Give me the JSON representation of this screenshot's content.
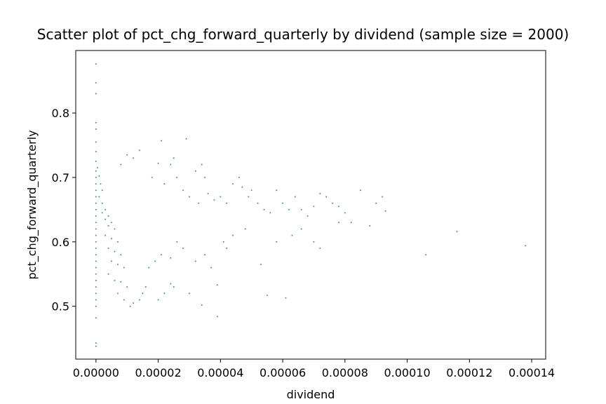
{
  "chart_data": {
    "type": "scatter",
    "title": "Scatter plot of pct_chg_forward_quarterly by dividend (sample size = 2000)",
    "xlabel": "dividend",
    "ylabel": "pct_chg_forward_quarterly",
    "xlim": [
      -6.5e-06,
      0.0001445
    ],
    "ylim": [
      0.418,
      0.897
    ],
    "xticks": [
      0.0,
      2e-05,
      4e-05,
      6e-05,
      8e-05,
      0.0001,
      0.00012,
      0.00014
    ],
    "xtick_labels": [
      "0.00000",
      "0.00002",
      "0.00004",
      "0.00006",
      "0.00008",
      "0.00010",
      "0.00012",
      "0.00014"
    ],
    "yticks": [
      0.5,
      0.6,
      0.7,
      0.8
    ],
    "ytick_labels": [
      "0.5",
      "0.6",
      "0.7",
      "0.8"
    ],
    "grid": false,
    "marker_color": "#1f77b4",
    "series": [
      {
        "points": [
          [
            0.0,
            0.876
          ],
          [
            0.0,
            0.847
          ],
          [
            0.0,
            0.83
          ],
          [
            0.0,
            0.785
          ],
          [
            0.0,
            0.775
          ],
          [
            0.0,
            0.755
          ],
          [
            0.0,
            0.74
          ],
          [
            0.0,
            0.725
          ],
          [
            0.0,
            0.71
          ],
          [
            0.0,
            0.7
          ],
          [
            0.0,
            0.69
          ],
          [
            0.0,
            0.68
          ],
          [
            0.0,
            0.67
          ],
          [
            0.0,
            0.66
          ],
          [
            0.0,
            0.65
          ],
          [
            0.0,
            0.64
          ],
          [
            0.0,
            0.63
          ],
          [
            0.0,
            0.62
          ],
          [
            0.0,
            0.61
          ],
          [
            0.0,
            0.6
          ],
          [
            0.0,
            0.59
          ],
          [
            0.0,
            0.58
          ],
          [
            0.0,
            0.57
          ],
          [
            0.0,
            0.56
          ],
          [
            0.0,
            0.55
          ],
          [
            0.0,
            0.54
          ],
          [
            0.0,
            0.53
          ],
          [
            0.0,
            0.52
          ],
          [
            0.0,
            0.51
          ],
          [
            0.0,
            0.5
          ],
          [
            0.0,
            0.482
          ],
          [
            0.0,
            0.443
          ],
          [
            0.0,
            0.438
          ],
          [
            5e-07,
            0.715
          ],
          [
            1e-06,
            0.702
          ],
          [
            1.5e-06,
            0.69
          ],
          [
            2e-06,
            0.68
          ],
          [
            1e-06,
            0.67
          ],
          [
            2e-06,
            0.66
          ],
          [
            3e-06,
            0.65
          ],
          [
            2e-06,
            0.645
          ],
          [
            4e-06,
            0.64
          ],
          [
            3e-06,
            0.635
          ],
          [
            5e-06,
            0.63
          ],
          [
            4e-06,
            0.625
          ],
          [
            6e-06,
            0.62
          ],
          [
            3e-06,
            0.61
          ],
          [
            5e-06,
            0.605
          ],
          [
            7e-06,
            0.6
          ],
          [
            4e-06,
            0.59
          ],
          [
            6e-06,
            0.585
          ],
          [
            8e-06,
            0.58
          ],
          [
            5e-06,
            0.57
          ],
          [
            7e-06,
            0.565
          ],
          [
            9e-06,
            0.56
          ],
          [
            4e-06,
            0.55
          ],
          [
            6e-06,
            0.54
          ],
          [
            8e-06,
            0.538
          ],
          [
            1e-05,
            0.53
          ],
          [
            7e-06,
            0.52
          ],
          [
            9e-06,
            0.51
          ],
          [
            1.1e-05,
            0.5
          ],
          [
            1.2e-05,
            0.505
          ],
          [
            1.5e-05,
            0.52
          ],
          [
            1.6e-05,
            0.53
          ],
          [
            1.4e-05,
            0.51
          ],
          [
            2e-05,
            0.51
          ],
          [
            8e-06,
            0.72
          ],
          [
            1e-05,
            0.735
          ],
          [
            1.2e-05,
            0.73
          ],
          [
            1.4e-05,
            0.742
          ],
          [
            1.8e-05,
            0.7
          ],
          [
            2e-05,
            0.722
          ],
          [
            2.1e-05,
            0.757
          ],
          [
            2.4e-05,
            0.72
          ],
          [
            2.9e-05,
            0.76
          ],
          [
            2.5e-05,
            0.73
          ],
          [
            2.2e-05,
            0.69
          ],
          [
            2.6e-05,
            0.7
          ],
          [
            2.8e-05,
            0.68
          ],
          [
            3.2e-05,
            0.71
          ],
          [
            3.4e-05,
            0.72
          ],
          [
            3.5e-05,
            0.7
          ],
          [
            3e-05,
            0.67
          ],
          [
            3.3e-05,
            0.66
          ],
          [
            3.6e-05,
            0.675
          ],
          [
            3.8e-05,
            0.665
          ],
          [
            4e-05,
            0.67
          ],
          [
            4.2e-05,
            0.66
          ],
          [
            4.4e-05,
            0.69
          ],
          [
            4.6e-05,
            0.7
          ],
          [
            4.7e-05,
            0.685
          ],
          [
            4.9e-05,
            0.67
          ],
          [
            5e-05,
            0.68
          ],
          [
            5.2e-05,
            0.66
          ],
          [
            5.4e-05,
            0.65
          ],
          [
            5.6e-05,
            0.645
          ],
          [
            5.8e-05,
            0.68
          ],
          [
            6e-05,
            0.66
          ],
          [
            6.2e-05,
            0.65
          ],
          [
            6.4e-05,
            0.67
          ],
          [
            6.6e-05,
            0.65
          ],
          [
            6.8e-05,
            0.64
          ],
          [
            7e-05,
            0.655
          ],
          [
            7.2e-05,
            0.675
          ],
          [
            7.4e-05,
            0.67
          ],
          [
            7.6e-05,
            0.66
          ],
          [
            7.8e-05,
            0.655
          ],
          [
            8e-05,
            0.645
          ],
          [
            8.2e-05,
            0.63
          ],
          [
            8.5e-05,
            0.68
          ],
          [
            8.8e-05,
            0.625
          ],
          [
            9e-05,
            0.66
          ],
          [
            9.2e-05,
            0.67
          ],
          [
            9.3e-05,
            0.648
          ],
          [
            0.000106,
            0.58
          ],
          [
            0.000116,
            0.616
          ],
          [
            0.000138,
            0.594
          ],
          [
            4.1e-05,
            0.6
          ],
          [
            4.4e-05,
            0.61
          ],
          [
            4.8e-05,
            0.62
          ],
          [
            5.3e-05,
            0.565
          ],
          [
            5.5e-05,
            0.517
          ],
          [
            6.1e-05,
            0.513
          ],
          [
            5.8e-05,
            0.6
          ],
          [
            6.3e-05,
            0.61
          ],
          [
            6.6e-05,
            0.62
          ],
          [
            7e-05,
            0.6
          ],
          [
            7.2e-05,
            0.59
          ],
          [
            7.8e-05,
            0.63
          ],
          [
            3.9e-05,
            0.533
          ],
          [
            3.7e-05,
            0.56
          ],
          [
            3.9e-05,
            0.484
          ],
          [
            3.4e-05,
            0.502
          ],
          [
            2.4e-05,
            0.535
          ],
          [
            2.2e-05,
            0.52
          ],
          [
            2.5e-05,
            0.53
          ],
          [
            3e-05,
            0.52
          ],
          [
            4.2e-05,
            0.59
          ],
          [
            3.2e-05,
            0.57
          ],
          [
            3.5e-05,
            0.58
          ],
          [
            2.8e-05,
            0.59
          ],
          [
            2.6e-05,
            0.6
          ],
          [
            2.4e-05,
            0.575
          ],
          [
            2.1e-05,
            0.58
          ],
          [
            1.9e-05,
            0.57
          ],
          [
            1.7e-05,
            0.56
          ]
        ]
      }
    ]
  }
}
